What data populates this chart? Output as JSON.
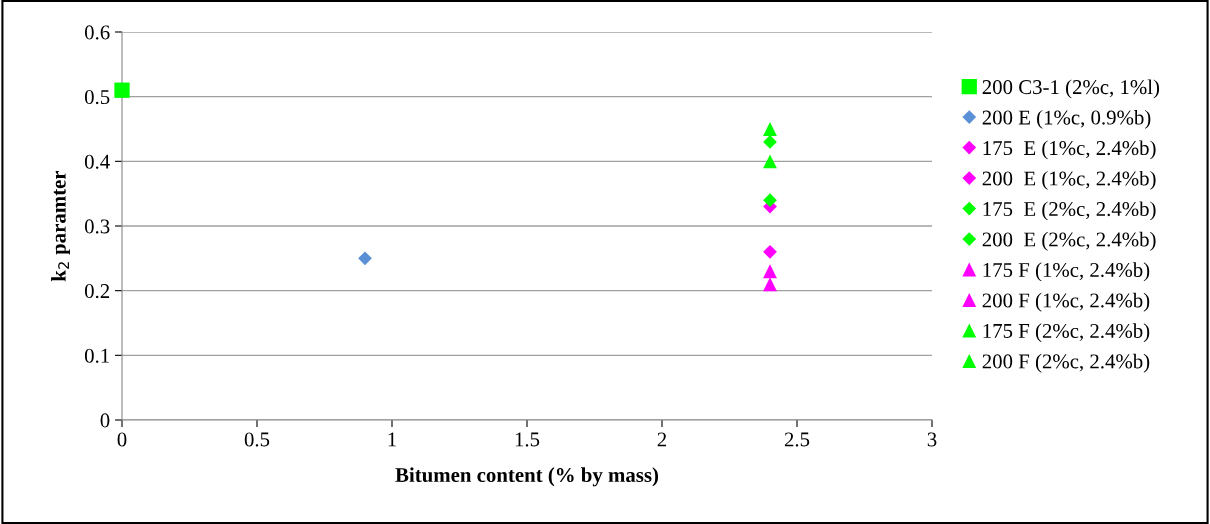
{
  "chart_data": {
    "type": "scatter",
    "xlabel": "Bitumen content (% by mass)",
    "ylabel": "k$_{2}$ paramter",
    "xlim": [
      0,
      3
    ],
    "xticks": [
      0,
      0.5,
      1,
      1.5,
      2,
      2.5,
      3
    ],
    "ylim": [
      0,
      0.6
    ],
    "yticks": [
      0,
      0.1,
      0.2,
      0.3,
      0.4,
      0.5,
      0.6
    ],
    "grid": "y",
    "legend": "right",
    "series": [
      {
        "name": "200 C3-1 (2%c, 1%l)",
        "color": "#00ff00",
        "marker": "square",
        "x": [
          0
        ],
        "values": [
          0.51
        ]
      },
      {
        "name": "200 E (1%c, 0.9%b)",
        "color": "#5b8fd6",
        "marker": "diamond",
        "x": [
          0.9
        ],
        "values": [
          0.25
        ]
      },
      {
        "name": "175  E (1%c, 2.4%b)",
        "color": "#ff00ff",
        "marker": "diamond",
        "x": [
          2.4
        ],
        "values": [
          0.26
        ]
      },
      {
        "name": "200  E (1%c, 2.4%b)",
        "color": "#ff00ff",
        "marker": "diamond",
        "x": [
          2.4
        ],
        "values": [
          0.33
        ]
      },
      {
        "name": "175  E (2%c, 2.4%b)",
        "color": "#00ff00",
        "marker": "diamond",
        "x": [
          2.4
        ],
        "values": [
          0.34
        ]
      },
      {
        "name": "200  E (2%c, 2.4%b)",
        "color": "#00ff00",
        "marker": "diamond",
        "x": [
          2.4
        ],
        "values": [
          0.43
        ]
      },
      {
        "name": "175 F (1%c, 2.4%b)",
        "color": "#ff00ff",
        "marker": "triangle",
        "x": [
          2.4
        ],
        "values": [
          0.21
        ]
      },
      {
        "name": "200 F (1%c, 2.4%b)",
        "color": "#ff00ff",
        "marker": "triangle",
        "x": [
          2.4
        ],
        "values": [
          0.23
        ]
      },
      {
        "name": "175 F (2%c, 2.4%b)",
        "color": "#00ff00",
        "marker": "triangle",
        "x": [
          2.4
        ],
        "values": [
          0.45
        ]
      },
      {
        "name": "200 F (2%c, 2.4%b)",
        "color": "#00ff00",
        "marker": "triangle",
        "x": [
          2.4
        ],
        "values": [
          0.4
        ]
      }
    ]
  }
}
